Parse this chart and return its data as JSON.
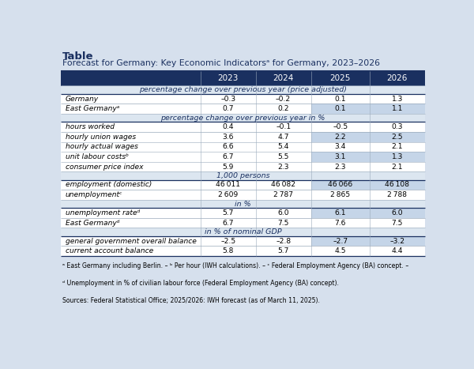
{
  "title": "Table",
  "subtitle": "Forecast for Germany: Key Economic Indicatorsᵃ for Germany, 2023–2026",
  "header_cols": [
    "",
    "2023",
    "2024",
    "2025",
    "2026"
  ],
  "header_bg": "#1a3060",
  "header_fg": "#ffffff",
  "section_headers": [
    "percentage change over previous year (price adjusted)",
    "percentage change over previous year in %",
    "1,000 persons",
    "in %",
    "in % of nominal GDP"
  ],
  "section_bg": "#dce6f0",
  "section_fg": "#1a3060",
  "rows": [
    {
      "label": "Germany",
      "values": [
        "–0.3",
        "–0.2",
        "0.1",
        "1.3"
      ],
      "section": 0,
      "highlight": false
    },
    {
      "label": "East Germanyᵃ",
      "values": [
        "0.7",
        "0.2",
        "0.1",
        "1.1"
      ],
      "section": 0,
      "highlight": true
    },
    {
      "label": "hours worked",
      "values": [
        "0.4",
        "–0.1",
        "–0.5",
        "0.3"
      ],
      "section": 1,
      "highlight": false
    },
    {
      "label": "hourly union wages",
      "values": [
        "3.6",
        "4.7",
        "2.2",
        "2.5"
      ],
      "section": 1,
      "highlight": true
    },
    {
      "label": "hourly actual wages",
      "values": [
        "6.6",
        "5.4",
        "3.4",
        "2.1"
      ],
      "section": 1,
      "highlight": false
    },
    {
      "label": "unit labour costsᵇ",
      "values": [
        "6.7",
        "5.5",
        "3.1",
        "1.3"
      ],
      "section": 1,
      "highlight": true
    },
    {
      "label": "consumer price index",
      "values": [
        "5.9",
        "2.3",
        "2.3",
        "2.1"
      ],
      "section": 1,
      "highlight": false
    },
    {
      "label": "employment (domestic)",
      "values": [
        "46 011",
        "46 082",
        "46 066",
        "46 108"
      ],
      "section": 2,
      "highlight": true
    },
    {
      "label": "unemploymentᶜ",
      "values": [
        "2 609",
        "2 787",
        "2 865",
        "2 788"
      ],
      "section": 2,
      "highlight": false
    },
    {
      "label": "unemployment rateᵈ",
      "values": [
        "5.7",
        "6.0",
        "6.1",
        "6.0"
      ],
      "section": 3,
      "highlight": true
    },
    {
      "label": "East Germanyᵈ",
      "values": [
        "6.7",
        "7.5",
        "7.6",
        "7.5"
      ],
      "section": 3,
      "highlight": false
    },
    {
      "label": "general government overall balance",
      "values": [
        "–2.5",
        "–2.8",
        "–2.7",
        "–3.2"
      ],
      "section": 4,
      "highlight": true
    },
    {
      "label": "current account balance",
      "values": [
        "5.8",
        "5.7",
        "4.5",
        "4.4"
      ],
      "section": 4,
      "highlight": false
    }
  ],
  "footnote1": "ᵃ East Germany including Berlin. – ᵇ Per hour (IWH calculations). – ᶜ Federal Employment Agency (BA) concept. –",
  "footnote2": "ᵈ Unemployment in % of civilian labour force (Federal Employment Agency (BA) concept).",
  "footnote3": "Sources: Federal Statistical Office; 2025/2026: IWH forecast (as of March 11, 2025).",
  "row_bg_white": "#ffffff",
  "highlight_bg": "#c5d5e8",
  "outer_bg": "#d6e0ed",
  "dark_blue": "#1a3060"
}
